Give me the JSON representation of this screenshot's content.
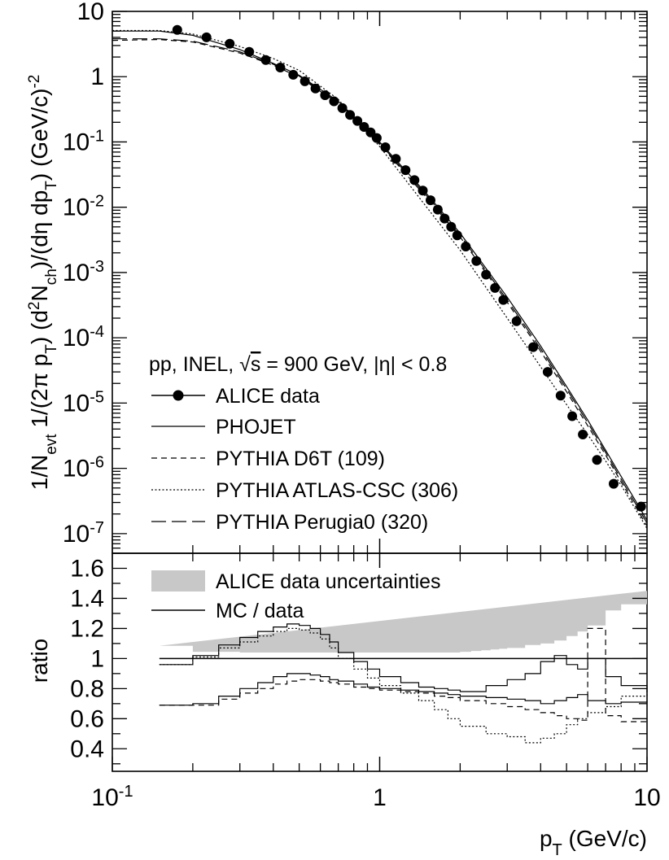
{
  "chart_data": [
    {
      "type": "line",
      "panel": "spectrum",
      "xscale": "log",
      "yscale": "log",
      "xlim": [
        0.1,
        10
      ],
      "ylim": [
        5e-08,
        10
      ],
      "yticks": [
        {
          "v": 10,
          "base": "10",
          "exp": ""
        },
        {
          "v": 1,
          "base": "1",
          "exp": ""
        },
        {
          "v": 0.1,
          "base": "10",
          "exp": "-1"
        },
        {
          "v": 0.01,
          "base": "10",
          "exp": "-2"
        },
        {
          "v": 0.001,
          "base": "10",
          "exp": "-3"
        },
        {
          "v": 0.0001,
          "base": "10",
          "exp": "-4"
        },
        {
          "v": 1e-05,
          "base": "10",
          "exp": "-5"
        },
        {
          "v": 1e-06,
          "base": "10",
          "exp": "-6"
        },
        {
          "v": 1e-07,
          "base": "10",
          "exp": "-7"
        }
      ],
      "ylabel": {
        "p1": "1/N",
        "s1": "evt",
        "p2": " 1/(2π p",
        "s2": "T",
        "p3": ") (d",
        "sup1": "2",
        "p4": "N",
        "s3": "ch",
        "p5": ")/(dη dp",
        "s4": "T",
        "p6": ") (GeV/c)",
        "sup2": "-2"
      },
      "annotation": {
        "pre": "pp, INEL, ",
        "sqrt": "√",
        "s": "s",
        "post": " = 900 GeV, |η| < 0.8"
      },
      "legend": [
        {
          "label": "ALICE data",
          "style": "marker-line"
        },
        {
          "label": "PHOJET",
          "style": "solid"
        },
        {
          "label": "PYTHIA D6T (109)",
          "style": "dashed"
        },
        {
          "label": "PYTHIA ATLAS-CSC (306)",
          "style": "dotted"
        },
        {
          "label": "PYTHIA Perugia0 (320)",
          "style": "longdash"
        }
      ],
      "series": [
        {
          "name": "ALICE data",
          "style": "marker",
          "x": [
            0.175,
            0.225,
            0.275,
            0.325,
            0.375,
            0.425,
            0.475,
            0.525,
            0.575,
            0.625,
            0.675,
            0.725,
            0.775,
            0.825,
            0.875,
            0.925,
            0.975,
            1.05,
            1.15,
            1.25,
            1.35,
            1.45,
            1.55,
            1.65,
            1.75,
            1.85,
            1.95,
            2.1,
            2.3,
            2.5,
            2.7,
            2.9,
            3.25,
            3.75,
            4.25,
            4.75,
            5.25,
            5.75,
            6.5,
            7.5,
            9.5
          ],
          "y": [
            5.2,
            4.0,
            3.2,
            2.4,
            1.8,
            1.38,
            1.07,
            0.85,
            0.66,
            0.52,
            0.42,
            0.33,
            0.26,
            0.21,
            0.17,
            0.14,
            0.115,
            0.083,
            0.055,
            0.037,
            0.026,
            0.018,
            0.0128,
            0.0092,
            0.0067,
            0.005,
            0.0037,
            0.0025,
            0.0015,
            0.00093,
            0.00058,
            0.00038,
            0.00018,
            7.2e-05,
            3e-05,
            1.3e-05,
            6.3e-06,
            3.3e-06,
            1.35e-06,
            5.8e-07,
            2.6e-07
          ]
        },
        {
          "name": "PHOJET",
          "style": "solid",
          "x": [
            0.1,
            0.15,
            0.2,
            0.3,
            0.4,
            0.5,
            0.7,
            1.0,
            1.5,
            2,
            3,
            4,
            5,
            6,
            7,
            8,
            10
          ],
          "y": [
            5.0,
            5.0,
            4.3,
            2.6,
            1.6,
            1.05,
            0.42,
            0.1,
            0.016,
            0.004,
            0.00042,
            7.5e-05,
            1.8e-05,
            5.5e-06,
            1.9e-06,
            7.5e-07,
            1.6e-07
          ]
        },
        {
          "name": "PYTHIA D6T (109)",
          "style": "dashed",
          "x": [
            0.1,
            0.15,
            0.2,
            0.3,
            0.4,
            0.5,
            0.7,
            1.0,
            1.5,
            2,
            3,
            4,
            5,
            6,
            7,
            8,
            10
          ],
          "y": [
            3.6,
            3.7,
            3.4,
            2.3,
            1.5,
            0.98,
            0.39,
            0.092,
            0.014,
            0.0035,
            0.00035,
            6.2e-05,
            1.5e-05,
            4.5e-06,
            1.6e-06,
            6.2e-07,
            1.3e-07
          ]
        },
        {
          "name": "PYTHIA ATLAS-CSC (306)",
          "style": "dotted",
          "x": [
            0.1,
            0.15,
            0.2,
            0.3,
            0.4,
            0.5,
            0.7,
            1.0,
            1.5,
            2,
            3,
            4,
            5,
            6,
            7,
            8,
            10
          ],
          "y": [
            5.1,
            5.1,
            4.5,
            2.9,
            1.9,
            1.25,
            0.45,
            0.085,
            0.01,
            0.0022,
            0.0002,
            3.6e-05,
            9.5e-06,
            3.3e-06,
            1.3e-06,
            5.5e-07,
            1.2e-07
          ]
        },
        {
          "name": "PYTHIA Perugia0 (320)",
          "style": "longdash",
          "x": [
            0.1,
            0.15,
            0.2,
            0.3,
            0.4,
            0.5,
            0.7,
            1.0,
            1.5,
            2,
            3,
            4,
            5,
            6,
            7,
            8,
            10
          ],
          "y": [
            3.8,
            3.8,
            3.5,
            2.4,
            1.55,
            1.02,
            0.4,
            0.095,
            0.015,
            0.0037,
            0.00038,
            6.8e-05,
            1.65e-05,
            5e-06,
            1.75e-06,
            6.8e-07,
            1.45e-07
          ]
        }
      ]
    },
    {
      "type": "line",
      "panel": "ratio",
      "xscale": "log",
      "xlim": [
        0.1,
        10
      ],
      "ylim": [
        0.25,
        1.7
      ],
      "yticks": [
        "0.4",
        "0.6",
        "0.8",
        "1",
        "1.2",
        "1.4",
        "1.6"
      ],
      "xticks": [
        {
          "v": 0.1,
          "base": "10",
          "exp": "-1"
        },
        {
          "v": 1,
          "base": "1",
          "exp": ""
        },
        {
          "v": 10,
          "base": "10",
          "exp": ""
        }
      ],
      "ylabel": "ratio",
      "xlabel": {
        "p": "p",
        "s": "T",
        "rest": " (GeV/c)"
      },
      "legend": [
        {
          "label": "ALICE data uncertainties",
          "style": "band"
        },
        {
          "label": "MC / data",
          "style": "solid"
        }
      ],
      "reference": 1,
      "band": {
        "edges": [
          0.15,
          0.2,
          0.3,
          0.4,
          0.5,
          0.6,
          0.7,
          0.8,
          0.9,
          1.0,
          1.2,
          1.4,
          1.6,
          1.8,
          2.0,
          2.2,
          2.4,
          2.6,
          2.8,
          3.0,
          3.5,
          4.0,
          4.5,
          5.0,
          5.5,
          6.0,
          7.0,
          8.0,
          10
        ],
        "halfwidth": [
          0.085,
          0.045,
          0.04,
          0.04,
          0.04,
          0.04,
          0.04,
          0.04,
          0.04,
          0.04,
          0.04,
          0.04,
          0.04,
          0.04,
          0.045,
          0.05,
          0.055,
          0.06,
          0.065,
          0.07,
          0.09,
          0.1,
          0.12,
          0.15,
          0.18,
          0.22,
          0.32,
          0.36,
          0.45
        ]
      },
      "series": [
        {
          "name": "PHOJET",
          "style": "solid",
          "edges": [
            0.15,
            0.2,
            0.25,
            0.3,
            0.35,
            0.4,
            0.45,
            0.5,
            0.55,
            0.6,
            0.65,
            0.7,
            0.8,
            0.9,
            1.0,
            1.2,
            1.4,
            1.6,
            1.8,
            2.0,
            2.5,
            3.0,
            3.5,
            4.0,
            4.5,
            5.0,
            5.5,
            6.0,
            7.0,
            8.0,
            10
          ],
          "values": [
            0.96,
            1.02,
            1.09,
            1.14,
            1.18,
            1.21,
            1.23,
            1.22,
            1.2,
            1.16,
            1.11,
            1.04,
            0.98,
            0.93,
            0.88,
            0.84,
            0.81,
            0.8,
            0.79,
            0.78,
            0.82,
            0.86,
            0.9,
            0.98,
            1.02,
            0.96,
            0.93,
            1.0,
            0.88,
            0.82,
            0.78
          ]
        },
        {
          "name": "PYTHIA ATLAS-CSC (306)",
          "style": "dotted",
          "edges": [
            0.15,
            0.2,
            0.25,
            0.3,
            0.35,
            0.4,
            0.45,
            0.5,
            0.55,
            0.6,
            0.65,
            0.7,
            0.8,
            0.9,
            1.0,
            1.2,
            1.4,
            1.6,
            1.8,
            2.0,
            2.5,
            3.0,
            3.5,
            4.0,
            4.5,
            5.0,
            5.5,
            6.0,
            7.0,
            8.0,
            10
          ],
          "values": [
            0.96,
            1.01,
            1.07,
            1.11,
            1.15,
            1.18,
            1.2,
            1.19,
            1.17,
            1.13,
            1.07,
            1.0,
            0.93,
            0.87,
            0.82,
            0.77,
            0.72,
            0.66,
            0.6,
            0.55,
            0.5,
            0.48,
            0.44,
            0.47,
            0.5,
            0.56,
            0.6,
            0.64,
            0.68,
            0.75,
            0.8
          ]
        },
        {
          "name": "PYTHIA Perugia0 (320)",
          "style": "solid",
          "edges": [
            0.15,
            0.2,
            0.25,
            0.3,
            0.35,
            0.4,
            0.45,
            0.5,
            0.55,
            0.6,
            0.65,
            0.7,
            0.8,
            0.9,
            1.0,
            1.2,
            1.4,
            1.6,
            1.8,
            2.0,
            2.5,
            3.0,
            3.5,
            4.0,
            4.5,
            5.0,
            5.5,
            6.0,
            7.0,
            8.0,
            10
          ],
          "values": [
            0.69,
            0.7,
            0.75,
            0.8,
            0.84,
            0.88,
            0.9,
            0.9,
            0.89,
            0.88,
            0.86,
            0.85,
            0.83,
            0.81,
            0.8,
            0.79,
            0.78,
            0.77,
            0.76,
            0.75,
            0.74,
            0.73,
            0.72,
            0.7,
            0.72,
            0.74,
            0.76,
            0.72,
            0.7,
            0.71,
            0.72
          ]
        },
        {
          "name": "PYTHIA D6T (109)",
          "style": "dashed",
          "edges": [
            0.15,
            0.2,
            0.25,
            0.3,
            0.35,
            0.4,
            0.45,
            0.5,
            0.55,
            0.6,
            0.65,
            0.7,
            0.8,
            0.9,
            1.0,
            1.2,
            1.4,
            1.6,
            1.8,
            2.0,
            2.5,
            3.0,
            3.5,
            4.0,
            4.5,
            5.0,
            5.5,
            6.0,
            7.0,
            8.0,
            10
          ],
          "values": [
            0.69,
            0.69,
            0.73,
            0.77,
            0.8,
            0.83,
            0.85,
            0.86,
            0.86,
            0.85,
            0.84,
            0.83,
            0.81,
            0.8,
            0.79,
            0.78,
            0.77,
            0.75,
            0.74,
            0.72,
            0.7,
            0.68,
            0.66,
            0.64,
            0.62,
            0.6,
            0.59,
            1.2,
            0.62,
            0.58,
            0.56
          ]
        }
      ]
    }
  ]
}
